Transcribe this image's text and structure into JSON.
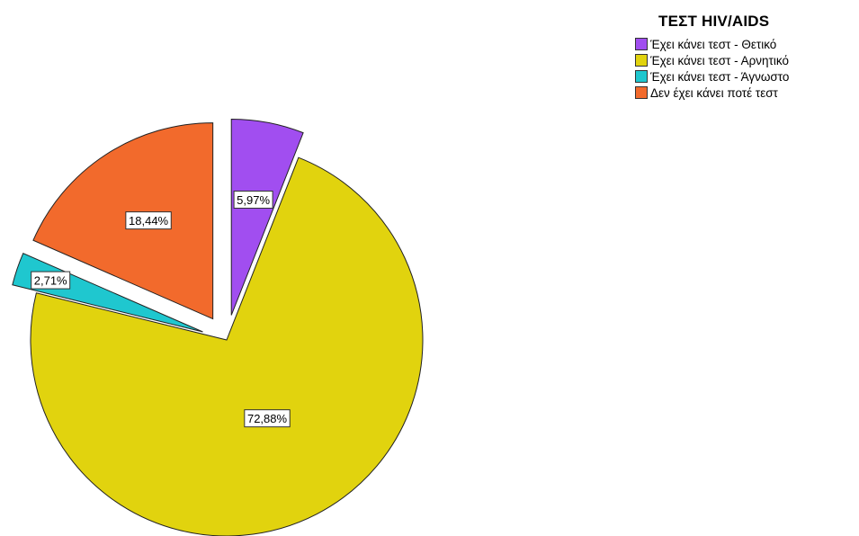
{
  "chart_data": {
    "type": "pie",
    "legend_title": "ΤΕΣΤ HIV/AIDS",
    "legend_position": "top-right",
    "series": [
      {
        "name": "Έχει κάνει τεστ - Θετικό",
        "value": 5.97,
        "label": "5,97%",
        "color": "#a14ef0"
      },
      {
        "name": "Έχει κάνει τεστ - Αρνητικό",
        "value": 72.88,
        "label": "72,88%",
        "color": "#e1d30e"
      },
      {
        "name": "Έχει κάνει τεστ - Άγνωστο",
        "value": 2.71,
        "label": "2,71%",
        "color": "#1fc7cf"
      },
      {
        "name": "Δεν έχει κάνει ποτέ τεστ",
        "value": 18.44,
        "label": "18,44%",
        "color": "#f26a2c"
      }
    ]
  }
}
